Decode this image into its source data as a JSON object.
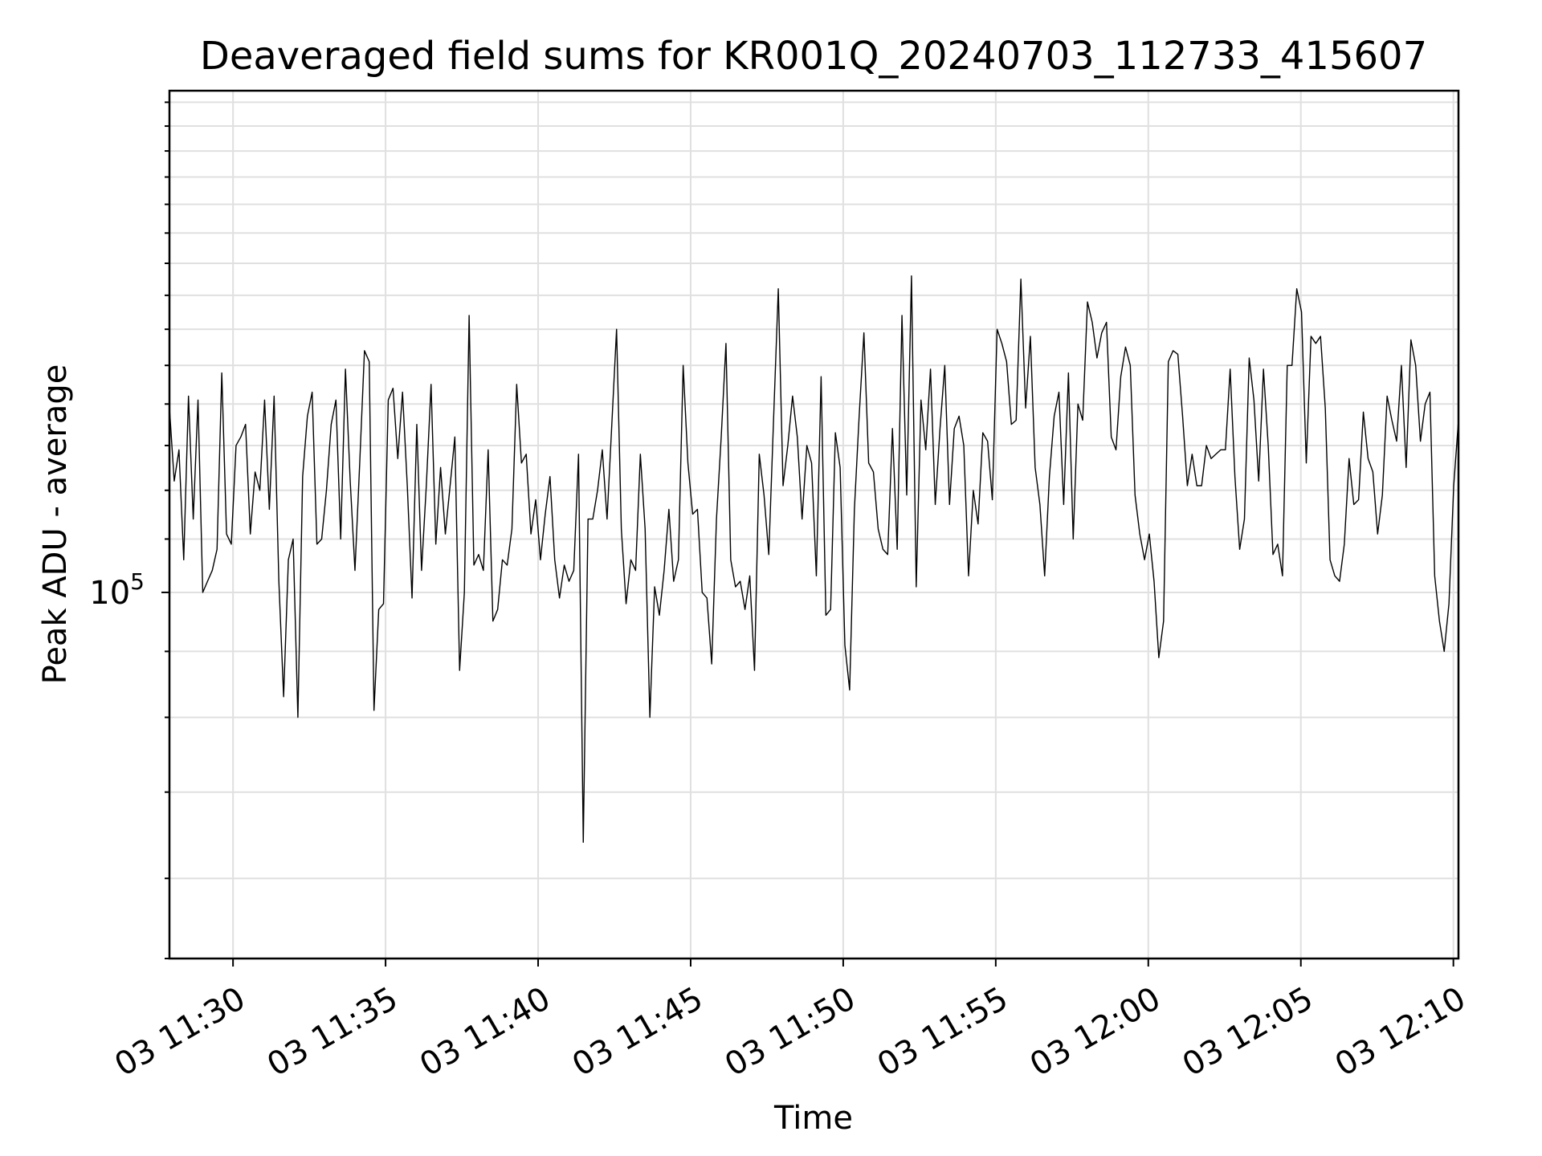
{
  "chart_data": {
    "type": "line",
    "title": "Deaveraged field sums for KR001Q_20240703_112733_415607",
    "xlabel": "Time",
    "ylabel": "Peak ADU - average",
    "x_tick_labels": [
      "03 11:30",
      "03 11:35",
      "03 11:40",
      "03 11:45",
      "03 11:50",
      "03 11:55",
      "03 12:00",
      "03 12:05",
      "03 12:10"
    ],
    "y_tick_label": {
      "base": "10",
      "exponent": "5"
    },
    "y_scale": "log",
    "xlim": [
      "2024-07-03 11:27:55",
      "2024-07-03 12:10:10"
    ],
    "ylim": [
      52000,
      245000
    ],
    "grid": true,
    "line_color": "#000000",
    "series": [
      {
        "x_start": "2024-07-03 11:27:55",
        "x_end": "2024-07-03 12:10:10",
        "values": [
          139000,
          122000,
          129000,
          106000,
          142000,
          114000,
          141000,
          100000,
          102000,
          104000,
          108000,
          148000,
          111000,
          109000,
          130000,
          132000,
          135000,
          111000,
          124000,
          120000,
          141000,
          116000,
          142000,
          102000,
          83000,
          106000,
          110000,
          80000,
          123000,
          137000,
          143000,
          109000,
          110000,
          120000,
          135000,
          141000,
          110000,
          149000,
          122000,
          104000,
          126000,
          154000,
          151000,
          81000,
          97000,
          98000,
          141000,
          144000,
          127000,
          143000,
          121000,
          99000,
          135000,
          104000,
          121000,
          145000,
          109000,
          125000,
          111000,
          121000,
          132000,
          87000,
          100000,
          164000,
          105000,
          107000,
          104000,
          129000,
          95000,
          97000,
          106000,
          105000,
          112000,
          145000,
          126000,
          128000,
          111000,
          118000,
          106000,
          115000,
          123000,
          106000,
          99000,
          105000,
          102000,
          104000,
          128000,
          64000,
          114000,
          114000,
          120000,
          129000,
          114000,
          135000,
          160000,
          112000,
          98000,
          106000,
          104000,
          128000,
          112000,
          80000,
          101000,
          96000,
          104000,
          116000,
          102000,
          106000,
          150000,
          126000,
          115000,
          116000,
          100000,
          99000,
          88000,
          114000,
          132000,
          156000,
          106000,
          101000,
          102000,
          97000,
          103000,
          87000,
          128000,
          119000,
          107000,
          136000,
          172000,
          121000,
          130000,
          142000,
          132000,
          114000,
          130000,
          126000,
          103000,
          147000,
          96000,
          97000,
          133000,
          125000,
          91000,
          84000,
          116000,
          137000,
          159000,
          126000,
          124000,
          112000,
          108000,
          107000,
          134000,
          108000,
          164000,
          119000,
          176000,
          101000,
          141000,
          129000,
          149000,
          117000,
          134000,
          150000,
          117000,
          134000,
          137000,
          130000,
          103000,
          120000,
          113000,
          133000,
          131000,
          118000,
          160000,
          156000,
          151000,
          135000,
          136000,
          175000,
          139000,
          158000,
          125000,
          117000,
          103000,
          123000,
          137000,
          143000,
          117000,
          148000,
          110000,
          140000,
          136000,
          168000,
          162000,
          152000,
          159000,
          162000,
          132000,
          129000,
          147000,
          155000,
          150000,
          119000,
          111000,
          106000,
          111000,
          102000,
          89000,
          95000,
          151000,
          154000,
          153000,
          137000,
          121000,
          128000,
          121000,
          121000,
          130000,
          127000,
          128000,
          129000,
          129000,
          149000,
          123000,
          108000,
          114000,
          152000,
          141000,
          122000,
          149000,
          130000,
          107000,
          109000,
          103000,
          150000,
          150000,
          172000,
          165000,
          126000,
          158000,
          156000,
          158000,
          139000,
          106000,
          103000,
          102000,
          109000,
          127000,
          117000,
          118000,
          138000,
          127000,
          124000,
          111000,
          119000,
          142000,
          136000,
          131000,
          150000,
          125000,
          157000,
          150000,
          131000,
          140000,
          143000,
          103000,
          95000,
          90000,
          98000,
          121000,
          136000
        ]
      }
    ]
  }
}
